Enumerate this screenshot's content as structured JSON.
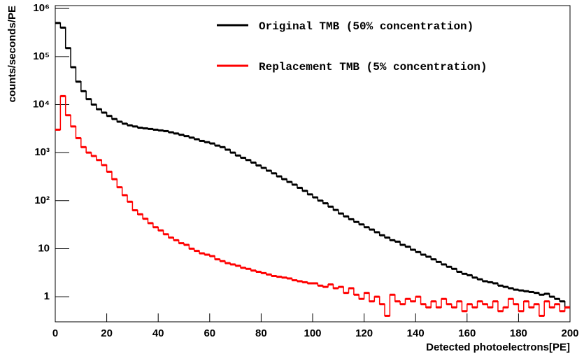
{
  "chart_data": {
    "type": "histogram",
    "xlabel": "Detected photoelectrons[PE]",
    "ylabel": "counts/seconds/PE",
    "log_y": true,
    "legend": "upper right",
    "xlim": [
      0,
      200
    ],
    "xticks": [
      0,
      20,
      40,
      60,
      80,
      100,
      120,
      140,
      160,
      180,
      200
    ],
    "ylim": [
      0.3,
      1150000
    ],
    "yticks": [
      1,
      10,
      {
        "value": 100,
        "label": "10²"
      },
      {
        "value": 1000,
        "label": "10³"
      },
      {
        "value": 10000,
        "label": "10⁴"
      },
      {
        "value": 100000,
        "label": "10⁵"
      },
      {
        "value": 1000000,
        "label": "10⁶"
      }
    ],
    "bins": [
      0,
      2,
      4,
      6,
      8,
      10,
      12,
      14,
      16,
      18,
      20,
      22,
      24,
      26,
      28,
      30,
      32,
      34,
      36,
      38,
      40,
      42,
      44,
      46,
      48,
      50,
      52,
      54,
      56,
      58,
      60,
      62,
      64,
      66,
      68,
      70,
      72,
      74,
      76,
      78,
      80,
      82,
      84,
      86,
      88,
      90,
      92,
      94,
      96,
      98,
      100,
      102,
      104,
      106,
      108,
      110,
      112,
      114,
      116,
      118,
      120,
      122,
      124,
      126,
      128,
      130,
      132,
      134,
      136,
      138,
      140,
      142,
      144,
      146,
      148,
      150,
      152,
      154,
      156,
      158,
      160,
      162,
      164,
      166,
      168,
      170,
      172,
      174,
      176,
      178,
      180,
      182,
      184,
      186,
      188,
      190,
      192,
      194,
      196,
      198,
      200
    ],
    "series": [
      {
        "name": "Original TMB (50% concentration)",
        "color": "#000000",
        "values": [
          500000,
          400000,
          150000,
          60000,
          30000,
          19000,
          13000,
          10000,
          8000,
          6800,
          5800,
          5000,
          4400,
          4000,
          3700,
          3500,
          3300,
          3200,
          3100,
          3000,
          2900,
          2800,
          2650,
          2500,
          2350,
          2200,
          2050,
          1900,
          1750,
          1650,
          1550,
          1400,
          1300,
          1150,
          1000,
          870,
          780,
          700,
          620,
          540,
          480,
          420,
          370,
          320,
          280,
          245,
          215,
          185,
          160,
          135,
          117,
          100,
          88,
          75,
          64,
          54,
          47,
          41,
          36,
          32,
          28,
          25,
          22,
          19,
          17,
          15,
          14,
          12,
          11,
          9.5,
          8.5,
          7.5,
          6.8,
          6,
          5.3,
          4.7,
          4.2,
          3.8,
          3.3,
          3,
          2.8,
          2.5,
          2.3,
          2.1,
          2,
          1.9,
          1.7,
          1.6,
          1.5,
          1.4,
          1.35,
          1.3,
          1.25,
          1.2,
          1.1,
          1.15,
          1,
          0.9,
          0.8,
          0.6
        ]
      },
      {
        "name": "Replacement TMB (5% concentration)",
        "color": "#ff0000",
        "values": [
          3000,
          15000,
          6000,
          3500,
          2000,
          1300,
          1000,
          850,
          700,
          550,
          400,
          280,
          190,
          130,
          95,
          63,
          52,
          42,
          34,
          28,
          24,
          20,
          17,
          15,
          13,
          12,
          10,
          9,
          8,
          7.5,
          7,
          6,
          5.5,
          5,
          4.7,
          4.4,
          4,
          3.8,
          3.5,
          3.3,
          3.1,
          2.9,
          2.7,
          2.6,
          2.5,
          2.4,
          2.2,
          2.1,
          2,
          1.9,
          1.9,
          1.7,
          1.6,
          1.8,
          1.5,
          1.6,
          1.2,
          1.5,
          1.1,
          0.9,
          1.2,
          0.8,
          1,
          0.7,
          0.4,
          1.1,
          0.8,
          0.7,
          0.9,
          0.8,
          1,
          0.7,
          0.6,
          0.8,
          0.6,
          0.9,
          0.7,
          0.6,
          0.8,
          0.5,
          0.7,
          0.6,
          0.8,
          0.7,
          0.6,
          0.8,
          0.5,
          0.6,
          0.9,
          0.7,
          0.5,
          0.8,
          0.6,
          0.7,
          0.4,
          0.8,
          0.6,
          0.7,
          0.5,
          0.6
        ]
      }
    ]
  }
}
